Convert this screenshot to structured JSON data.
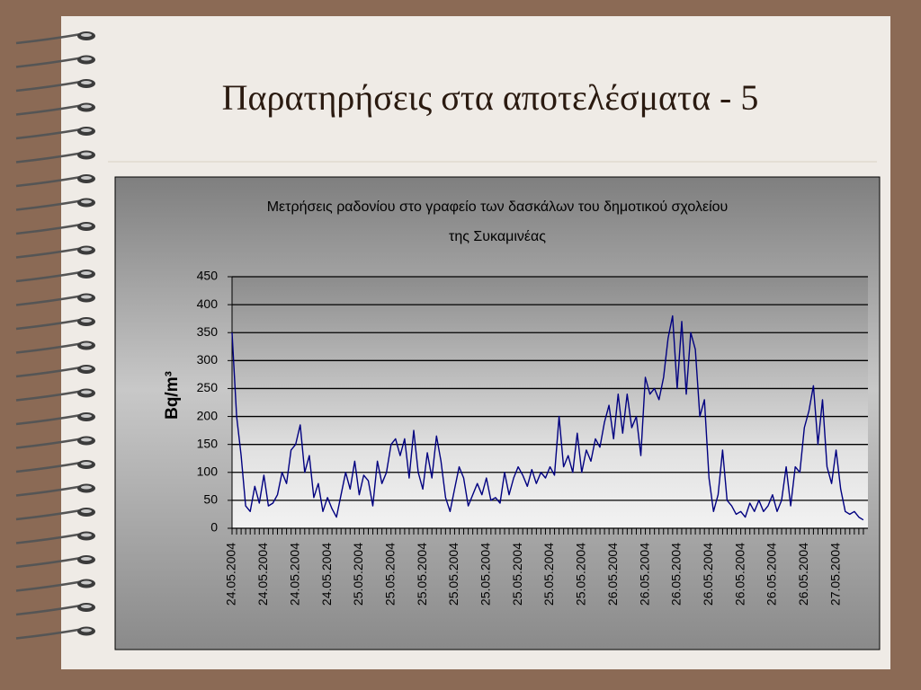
{
  "slide_title": "Παρατηρήσεις στα αποτελέσματα - 5",
  "chart_data": {
    "type": "line",
    "title": [
      "Μετρήσεις ραδονίου στο γραφείο των δασκάλων του δημοτικού σχολείου",
      "της Συκαμινέας"
    ],
    "y_label": "Bq/m³",
    "ylim": [
      0,
      450
    ],
    "yticks": [
      0,
      50,
      100,
      150,
      200,
      250,
      300,
      350,
      400,
      450
    ],
    "grid": true,
    "categories": [
      "24.05.2004",
      null,
      null,
      null,
      null,
      null,
      null,
      "24.05.2004",
      null,
      null,
      null,
      null,
      null,
      null,
      "24.05.2004",
      null,
      null,
      null,
      null,
      null,
      null,
      "24.05.2004",
      null,
      null,
      null,
      null,
      null,
      null,
      "25.05.2004",
      null,
      null,
      null,
      null,
      null,
      null,
      "25.05.2004",
      null,
      null,
      null,
      null,
      null,
      null,
      "25.05.2004",
      null,
      null,
      null,
      null,
      null,
      null,
      "25.05.2004",
      null,
      null,
      null,
      null,
      null,
      null,
      "25.05.2004",
      null,
      null,
      null,
      null,
      null,
      null,
      "25.05.2004",
      null,
      null,
      null,
      null,
      null,
      null,
      "25.05.2004",
      null,
      null,
      null,
      null,
      null,
      null,
      "25.05.2004",
      null,
      null,
      null,
      null,
      null,
      null,
      "26.05.2004",
      null,
      null,
      null,
      null,
      null,
      null,
      "26.05.2004",
      null,
      null,
      null,
      null,
      null,
      null,
      "26.05.2004",
      null,
      null,
      null,
      null,
      null,
      null,
      "26.05.2004",
      null,
      null,
      null,
      null,
      null,
      null,
      "26.05.2004",
      null,
      null,
      null,
      null,
      null,
      null,
      "26.05.2004",
      null,
      null,
      null,
      null,
      null,
      null,
      "26.05.2004",
      null,
      null,
      null,
      null,
      null,
      null,
      "27.05.2004",
      null,
      null,
      null,
      null,
      null,
      null
    ],
    "series": [
      {
        "color": "#000080",
        "values": [
          350,
          200,
          130,
          40,
          30,
          75,
          45,
          95,
          40,
          45,
          60,
          100,
          80,
          140,
          150,
          185,
          100,
          130,
          55,
          80,
          30,
          55,
          35,
          20,
          60,
          100,
          70,
          120,
          60,
          95,
          85,
          40,
          120,
          80,
          100,
          150,
          160,
          130,
          160,
          90,
          175,
          100,
          70,
          135,
          90,
          165,
          120,
          55,
          30,
          70,
          110,
          90,
          40,
          60,
          80,
          60,
          90,
          50,
          55,
          45,
          100,
          60,
          90,
          110,
          95,
          75,
          105,
          80,
          100,
          90,
          110,
          95,
          200,
          110,
          130,
          100,
          170,
          100,
          140,
          120,
          160,
          145,
          190,
          220,
          160,
          240,
          170,
          240,
          180,
          200,
          130,
          270,
          240,
          250,
          230,
          270,
          340,
          380,
          250,
          370,
          240,
          350,
          320,
          200,
          230,
          90,
          30,
          60,
          140,
          50,
          40,
          25,
          30,
          20,
          45,
          30,
          50,
          30,
          40,
          60,
          30,
          50,
          110,
          40,
          110,
          100,
          180,
          210,
          255,
          150,
          230,
          110,
          80,
          140,
          70,
          30,
          25,
          30,
          20,
          15
        ]
      }
    ]
  }
}
